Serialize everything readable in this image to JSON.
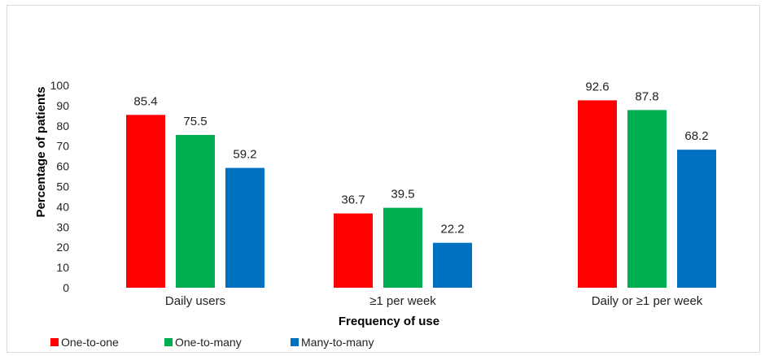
{
  "chart_data": {
    "type": "bar",
    "categories": [
      "Daily users",
      "≥1 per week",
      "Daily or ≥1 per week"
    ],
    "series": [
      {
        "name": "One-to-one",
        "color": "#ff0000",
        "values": [
          85.4,
          36.7,
          92.6
        ]
      },
      {
        "name": "One-to-many",
        "color": "#00b050",
        "values": [
          75.5,
          39.5,
          87.8
        ]
      },
      {
        "name": "Many-to-many",
        "color": "#0070c0",
        "values": [
          59.2,
          22.2,
          68.2
        ]
      }
    ],
    "title": "",
    "xlabel": "Frequency of use",
    "ylabel": "Percentage of patients",
    "ylim": [
      0,
      100
    ],
    "yticks": [
      0,
      10,
      20,
      30,
      40,
      50,
      60,
      70,
      80,
      90,
      100
    ],
    "grid": false,
    "legend_position": "bottom-left",
    "data_labels": true
  }
}
